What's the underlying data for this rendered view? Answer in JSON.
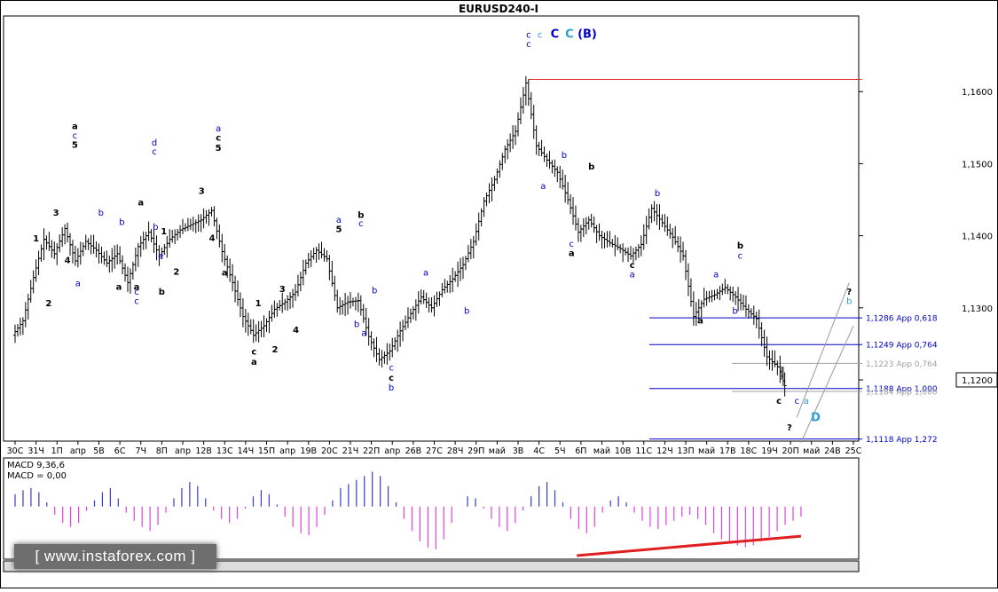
{
  "chart_data": {
    "type": "candlestick",
    "title": "EURUSD240-I",
    "y_axis": {
      "tick_labels": [
        "1,1600",
        "1,1500",
        "1,1400",
        "1,1300",
        "1,1200"
      ],
      "ticks": [
        1.16,
        1.15,
        1.14,
        1.13,
        1.12
      ],
      "current_price_label": "1,1200",
      "current_price": 1.12,
      "ylim": [
        1.1115,
        1.1705
      ]
    },
    "x_axis": {
      "tick_labels": [
        "30С",
        "31Ч",
        "1П",
        "апр",
        "5В",
        "6С",
        "7Ч",
        "8П",
        "апр",
        "12В",
        "13С",
        "14Ч",
        "15П",
        "апр",
        "19В",
        "20С",
        "21Ч",
        "22П",
        "апр",
        "26В",
        "27С",
        "28Ч",
        "29П",
        "май",
        "3В",
        "4С",
        "5Ч",
        "6П",
        "май",
        "10В",
        "11С",
        "12Ч",
        "13П",
        "май",
        "17В",
        "18С",
        "19Ч",
        "20П",
        "май",
        "24В",
        "25С"
      ],
      "index_range": [
        0,
        40
      ]
    },
    "price_path": [
      [
        0,
        1.1262
      ],
      [
        0.5,
        1.1282
      ],
      [
        1,
        1.1342
      ],
      [
        1.5,
        1.1395
      ],
      [
        2,
        1.1375
      ],
      [
        2.5,
        1.141
      ],
      [
        3,
        1.1365
      ],
      [
        3.5,
        1.1392
      ],
      [
        4,
        1.138
      ],
      [
        4.5,
        1.1362
      ],
      [
        5,
        1.1375
      ],
      [
        5.5,
        1.1335
      ],
      [
        6,
        1.1385
      ],
      [
        6.5,
        1.1405
      ],
      [
        7,
        1.1372
      ],
      [
        7.5,
        1.1395
      ],
      [
        8,
        1.1408
      ],
      [
        8.5,
        1.1415
      ],
      [
        9,
        1.1422
      ],
      [
        9.5,
        1.1435
      ],
      [
        10,
        1.1378
      ],
      [
        10.5,
        1.1335
      ],
      [
        11,
        1.1288
      ],
      [
        11.5,
        1.1262
      ],
      [
        12,
        1.1275
      ],
      [
        12.5,
        1.1298
      ],
      [
        13,
        1.1308
      ],
      [
        13.5,
        1.1322
      ],
      [
        14,
        1.1362
      ],
      [
        14.5,
        1.138
      ],
      [
        15,
        1.1368
      ],
      [
        15.5,
        1.13
      ],
      [
        16,
        1.1308
      ],
      [
        16.5,
        1.131
      ],
      [
        17,
        1.126
      ],
      [
        17.5,
        1.1228
      ],
      [
        18,
        1.124
      ],
      [
        18.5,
        1.1268
      ],
      [
        19,
        1.1292
      ],
      [
        19.5,
        1.1315
      ],
      [
        20,
        1.13
      ],
      [
        20.5,
        1.1325
      ],
      [
        21,
        1.134
      ],
      [
        21.5,
        1.136
      ],
      [
        22,
        1.1392
      ],
      [
        22.5,
        1.1448
      ],
      [
        23,
        1.1478
      ],
      [
        23.5,
        1.152
      ],
      [
        24,
        1.1545
      ],
      [
        24.5,
        1.1612
      ],
      [
        25,
        1.1525
      ],
      [
        25.5,
        1.1505
      ],
      [
        26,
        1.1488
      ],
      [
        26.5,
        1.145
      ],
      [
        27,
        1.1405
      ],
      [
        27.5,
        1.1422
      ],
      [
        28,
        1.14
      ],
      [
        28.5,
        1.139
      ],
      [
        29,
        1.1382
      ],
      [
        29.5,
        1.1372
      ],
      [
        30,
        1.1388
      ],
      [
        30.5,
        1.1438
      ],
      [
        31,
        1.1418
      ],
      [
        31.5,
        1.1398
      ],
      [
        32,
        1.1372
      ],
      [
        32.5,
        1.1288
      ],
      [
        33,
        1.1312
      ],
      [
        33.5,
        1.1318
      ],
      [
        34,
        1.1328
      ],
      [
        34.5,
        1.1315
      ],
      [
        35,
        1.1298
      ],
      [
        35.5,
        1.1285
      ],
      [
        36,
        1.1232
      ],
      [
        36.5,
        1.1218
      ],
      [
        36.8,
        1.1192
      ]
    ],
    "levels": [
      {
        "label": "1,1286 Арр 0,618",
        "value": 1.1286,
        "color": "#0000c8"
      },
      {
        "label": "1,1249 Арр 0,764",
        "value": 1.1249,
        "color": "#0000c8"
      },
      {
        "label": "1,1223 Арр 0,764",
        "value": 1.1223,
        "color": "#a0a0a0"
      },
      {
        "label": "1,1188 Арр 1,000",
        "value": 1.1188,
        "color": "#0000c8"
      },
      {
        "label": "1,1184 Арр 1,000",
        "value": 1.1184,
        "color": "#a0a0a0"
      },
      {
        "label": "1,1118 Арр 1,272",
        "value": 1.1118,
        "color": "#0000c8"
      }
    ],
    "top_level": {
      "value": 1.1617,
      "from_index": 24.5,
      "to_index": 40.4,
      "color": "#e03030"
    },
    "wave_labels": [
      {
        "text": "c",
        "i": 24.5,
        "y": 1.1675,
        "color": "#0000c8"
      },
      {
        "text": "c",
        "i": 25.05,
        "y": 1.1675,
        "color": "#2a9fd0"
      },
      {
        "text": "C",
        "i": 25.75,
        "y": 1.1675,
        "color": "#0000c8"
      },
      {
        "text": "C",
        "i": 26.45,
        "y": 1.1675,
        "color": "#2a9fd0"
      },
      {
        "text": "(B)",
        "i": 27.3,
        "y": 1.1675,
        "color": "#0000c8"
      },
      {
        "text": "c",
        "i": 24.5,
        "y": 1.1662,
        "color": "#0000c8"
      },
      {
        "text": "a",
        "i": 9.7,
        "y": 1.1545,
        "color": "#0000c8"
      },
      {
        "text": "c",
        "i": 9.7,
        "y": 1.1532,
        "color": "#000000"
      },
      {
        "text": "5",
        "i": 9.7,
        "y": 1.1518,
        "color": "#000000"
      },
      {
        "text": "3",
        "i": 8.9,
        "y": 1.1458,
        "color": "#000000"
      },
      {
        "text": "4",
        "i": 9.4,
        "y": 1.1393,
        "color": "#000000"
      },
      {
        "text": "a",
        "i": 10.0,
        "y": 1.1345,
        "color": "#000000"
      },
      {
        "text": "d",
        "i": 6.65,
        "y": 1.1525,
        "color": "#0000c8"
      },
      {
        "text": "c",
        "i": 6.65,
        "y": 1.1513,
        "color": "#0000c8"
      },
      {
        "text": "a",
        "i": 6.0,
        "y": 1.1442,
        "color": "#000000"
      },
      {
        "text": "b",
        "i": 6.7,
        "y": 1.1408,
        "color": "#0000c8"
      },
      {
        "text": "1",
        "i": 7.1,
        "y": 1.1402,
        "color": "#000000"
      },
      {
        "text": "e",
        "i": 6.95,
        "y": 1.1368,
        "color": "#0000c8"
      },
      {
        "text": "2",
        "i": 7.7,
        "y": 1.1346,
        "color": "#000000"
      },
      {
        "text": "b",
        "i": 7.0,
        "y": 1.1318,
        "color": "#000000"
      },
      {
        "text": "a",
        "i": 5.8,
        "y": 1.1325,
        "color": "#000000"
      },
      {
        "text": "c",
        "i": 5.8,
        "y": 1.1318,
        "color": "#0000c8"
      },
      {
        "text": "c",
        "i": 5.8,
        "y": 1.1305,
        "color": "#0000c8"
      },
      {
        "text": "b",
        "i": 5.1,
        "y": 1.1415,
        "color": "#0000c8"
      },
      {
        "text": "a",
        "i": 4.95,
        "y": 1.1325,
        "color": "#000000"
      },
      {
        "text": "b",
        "i": 4.1,
        "y": 1.1428,
        "color": "#0000c8"
      },
      {
        "text": "a",
        "i": 2.85,
        "y": 1.1548,
        "color": "#000000"
      },
      {
        "text": "c",
        "i": 2.85,
        "y": 1.1535,
        "color": "#0000c8"
      },
      {
        "text": "5",
        "i": 2.85,
        "y": 1.1522,
        "color": "#000000"
      },
      {
        "text": "3",
        "i": 1.95,
        "y": 1.1428,
        "color": "#000000"
      },
      {
        "text": "1",
        "i": 1.0,
        "y": 1.1392,
        "color": "#000000"
      },
      {
        "text": "4",
        "i": 2.5,
        "y": 1.1362,
        "color": "#000000"
      },
      {
        "text": "2",
        "i": 1.6,
        "y": 1.1302,
        "color": "#000000"
      },
      {
        "text": "a",
        "i": 3.0,
        "y": 1.133,
        "color": "#0000c8"
      },
      {
        "text": "1",
        "i": 11.6,
        "y": 1.1302,
        "color": "#000000"
      },
      {
        "text": "2",
        "i": 12.4,
        "y": 1.1238,
        "color": "#000000"
      },
      {
        "text": "3",
        "i": 12.75,
        "y": 1.1322,
        "color": "#000000"
      },
      {
        "text": "4",
        "i": 13.4,
        "y": 1.1265,
        "color": "#000000"
      },
      {
        "text": "c",
        "i": 11.4,
        "y": 1.1235,
        "color": "#000000"
      },
      {
        "text": "a",
        "i": 11.4,
        "y": 1.1221,
        "color": "#000000"
      },
      {
        "text": "a",
        "i": 15.45,
        "y": 1.1418,
        "color": "#0000c8"
      },
      {
        "text": "5",
        "i": 15.45,
        "y": 1.1405,
        "color": "#000000"
      },
      {
        "text": "b",
        "i": 16.5,
        "y": 1.1425,
        "color": "#000000"
      },
      {
        "text": "c",
        "i": 16.5,
        "y": 1.1413,
        "color": "#0000c8"
      },
      {
        "text": "b",
        "i": 17.15,
        "y": 1.132,
        "color": "#0000c8"
      },
      {
        "text": "b",
        "i": 16.3,
        "y": 1.1273,
        "color": "#0000c8"
      },
      {
        "text": "a",
        "i": 16.65,
        "y": 1.1261,
        "color": "#0000c8"
      },
      {
        "text": "c",
        "i": 17.95,
        "y": 1.1213,
        "color": "#0000c8"
      },
      {
        "text": "c",
        "i": 17.95,
        "y": 1.1199,
        "color": "#000000"
      },
      {
        "text": "b",
        "i": 17.95,
        "y": 1.1185,
        "color": "#0000c8"
      },
      {
        "text": "a",
        "i": 19.6,
        "y": 1.1345,
        "color": "#0000c8"
      },
      {
        "text": "b",
        "i": 21.55,
        "y": 1.1292,
        "color": "#0000c8"
      },
      {
        "text": "b",
        "i": 26.2,
        "y": 1.1508,
        "color": "#0000c8"
      },
      {
        "text": "a",
        "i": 25.2,
        "y": 1.1465,
        "color": "#0000c8"
      },
      {
        "text": "b",
        "i": 27.5,
        "y": 1.1492,
        "color": "#000000"
      },
      {
        "text": "c",
        "i": 26.55,
        "y": 1.1385,
        "color": "#0000c8"
      },
      {
        "text": "a",
        "i": 26.55,
        "y": 1.1372,
        "color": "#000000"
      },
      {
        "text": "c",
        "i": 29.45,
        "y": 1.1355,
        "color": "#000000"
      },
      {
        "text": "a",
        "i": 29.45,
        "y": 1.1342,
        "color": "#0000c8"
      },
      {
        "text": "b",
        "i": 30.65,
        "y": 1.1455,
        "color": "#0000c8"
      },
      {
        "text": "b",
        "i": 34.6,
        "y": 1.1382,
        "color": "#000000"
      },
      {
        "text": "c",
        "i": 34.6,
        "y": 1.1368,
        "color": "#0000c8"
      },
      {
        "text": "a",
        "i": 33.45,
        "y": 1.1342,
        "color": "#0000c8"
      },
      {
        "text": "b",
        "i": 34.35,
        "y": 1.1292,
        "color": "#0000c8"
      },
      {
        "text": "a",
        "i": 32.7,
        "y": 1.1278,
        "color": "#000000"
      },
      {
        "text": "c",
        "i": 36.45,
        "y": 1.1167,
        "color": "#000000"
      },
      {
        "text": "c",
        "i": 37.3,
        "y": 1.1167,
        "color": "#0000c8"
      },
      {
        "text": "a",
        "i": 37.75,
        "y": 1.1167,
        "color": "#2a9fd0"
      },
      {
        "text": "D",
        "i": 38.2,
        "y": 1.1143,
        "color": "#2a9fd0"
      },
      {
        "text": "?",
        "i": 36.95,
        "y": 1.113,
        "color": "#000000"
      },
      {
        "text": "?",
        "i": 39.8,
        "y": 1.1318,
        "color": "#000000"
      },
      {
        "text": "b",
        "i": 39.8,
        "y": 1.1305,
        "color": "#2a9fd0"
      }
    ],
    "channel_lines": [
      {
        "i1": 37.3,
        "y1": 1.1148,
        "i2": 39.8,
        "y2": 1.1335
      },
      {
        "i1": 37.5,
        "y1": 1.1113,
        "i2": 40.0,
        "y2": 1.1275
      }
    ],
    "indicator": {
      "name": "MACD 9,36,6",
      "value_label": "MACD = 0,00",
      "values": [
        0.6,
        0.8,
        0.9,
        0.7,
        0.2,
        -0.4,
        -0.8,
        -1.0,
        -0.8,
        -0.2,
        0.3,
        0.7,
        0.9,
        0.4,
        -0.3,
        -0.7,
        -1.0,
        -1.2,
        -0.9,
        -0.3,
        0.4,
        0.9,
        1.2,
        1.0,
        0.4,
        -0.2,
        -0.6,
        -0.8,
        -0.6,
        -0.1,
        0.5,
        0.8,
        0.6,
        0.1,
        -0.5,
        -1.0,
        -1.3,
        -1.4,
        -1.0,
        -0.4,
        0.3,
        0.9,
        1.1,
        1.3,
        1.5,
        1.7,
        1.5,
        1.0,
        0.2,
        -0.6,
        -1.2,
        -1.7,
        -2.0,
        -2.1,
        -1.6,
        -0.8,
        0.0,
        0.5,
        0.4,
        -0.1,
        -0.6,
        -1.0,
        -1.2,
        -0.8,
        -0.2,
        0.5,
        1.0,
        1.2,
        0.8,
        0.2,
        -0.6,
        -1.1,
        -1.3,
        -1.0,
        -0.3,
        0.3,
        0.5,
        0.2,
        -0.3,
        -0.7,
        -1.0,
        -1.1,
        -0.9,
        -0.7,
        -0.5,
        -0.4,
        -0.6,
        -0.9,
        -1.3,
        -1.6,
        -1.8,
        -1.9,
        -2.0,
        -1.9,
        -1.7,
        -1.5,
        -1.2,
        -0.9,
        -0.7,
        -0.5
      ],
      "range": [
        -2.4,
        2.2
      ],
      "divergence_line": {
        "i1": 26.8,
        "v1": -2.4,
        "i2": 37.5,
        "v2": -1.45
      }
    },
    "watermark": "[ www.instaforex.com ]"
  }
}
